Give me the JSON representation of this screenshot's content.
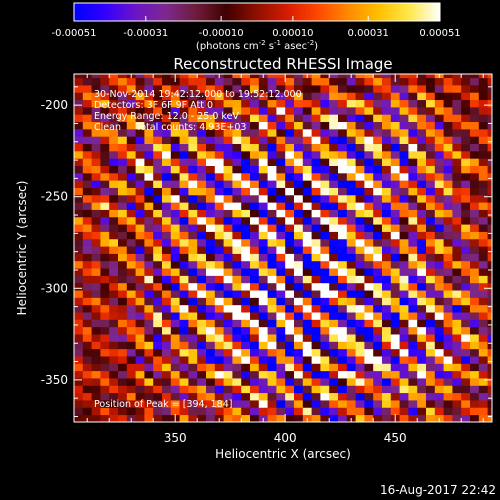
{
  "colorbar": {
    "ticks": [
      "-0.00051",
      "-0.00031",
      "-0.00010",
      "0.00010",
      "0.00031",
      "0.00051"
    ],
    "unit_pre": "(photons cm",
    "unit_sup1": "-2",
    "unit_mid": " s",
    "unit_sup2": "-1",
    "unit_mid2": " asec",
    "unit_sup3": "-2",
    "unit_post": ")",
    "range": [
      -0.00051,
      0.00051
    ],
    "stops": [
      "#0000ff",
      "#3000ff",
      "#6b14c8",
      "#7d2890",
      "#6e1c3c",
      "#400000",
      "#901000",
      "#d61c00",
      "#ff4800",
      "#ff8a00",
      "#ffc000",
      "#ffe84a",
      "#ffffff"
    ]
  },
  "plot": {
    "title": "Reconstructed RHESSI Image",
    "info_lines": [
      "30-Nov-2014 19:42:12.000 to 19:52:12.000",
      "Detectors: 3F 6F 9F  Att 0",
      "Energy Range: 12.0 - 25.0 keV",
      "Clean     Total counts: 4.93E+03"
    ],
    "peak_label": "Position of Peak = [394, 184]",
    "x_label": "Heliocentric X (arcsec)",
    "y_label": "Heliocentric Y (arcsec)"
  },
  "footer": {
    "timestamp": "16-Aug-2017 22:42"
  },
  "chart_data": {
    "type": "heatmap",
    "title": "Reconstructed RHESSI Image",
    "xlabel": "Heliocentric X (arcsec)",
    "ylabel": "Heliocentric Y (arcsec)",
    "xlim": [
      304,
      494
    ],
    "ylim": [
      -373,
      -183
    ],
    "x_ticks": [
      350,
      400,
      450
    ],
    "y_ticks": [
      -200,
      -250,
      -300,
      -350
    ],
    "colorbar_range": [
      -0.00051,
      0.00051
    ],
    "colorbar_ticks": [
      -0.00051,
      -0.00031,
      -0.0001,
      0.0001,
      0.00031,
      0.00051
    ],
    "colorbar_unit": "photons cm^-2 s^-1 asec^-2",
    "peak_position": [
      394,
      184
    ],
    "total_counts": "4.93E+03",
    "energy_range_keV": [
      12.0,
      25.0
    ],
    "pixel_size_arcsec": 4,
    "grid": false
  }
}
